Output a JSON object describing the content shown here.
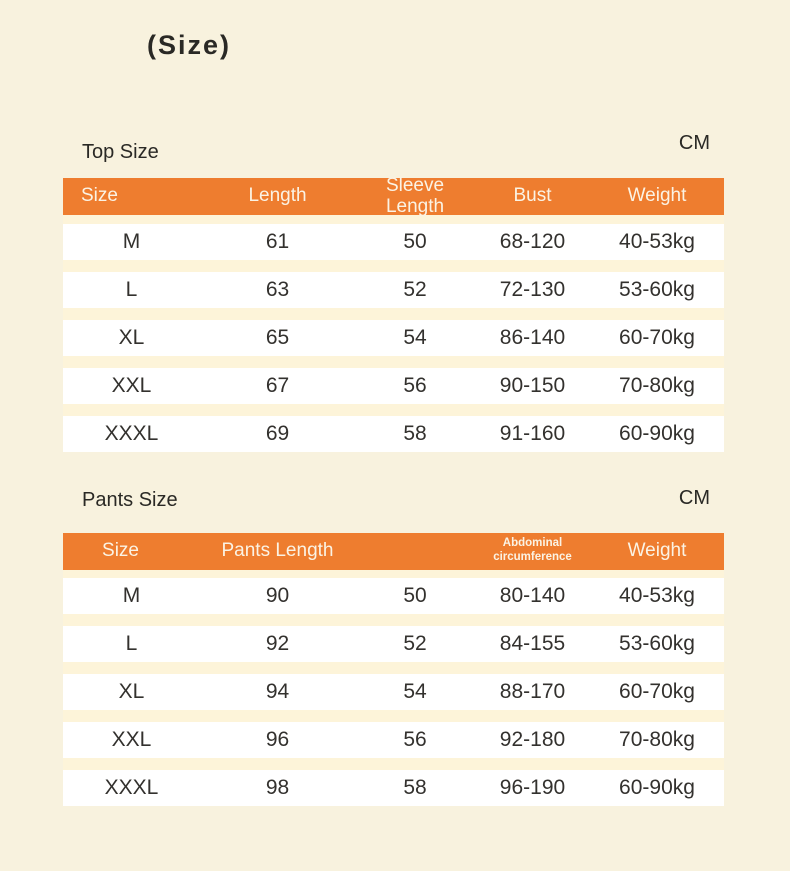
{
  "page": {
    "title": "(Size)",
    "background_color": "#f8f2de",
    "accent_color": "#ee7d2f"
  },
  "tables": [
    {
      "section_label": "Top Size",
      "unit": "CM",
      "headers": [
        "Size",
        "Length",
        "Sleeve Length",
        "Bust",
        "Weight"
      ],
      "rows": [
        [
          "M",
          "61",
          "50",
          "68-120",
          "40-53kg"
        ],
        [
          "L",
          "63",
          "52",
          "72-130",
          "53-60kg"
        ],
        [
          "XL",
          "65",
          "54",
          "86-140",
          "60-70kg"
        ],
        [
          "XXL",
          "67",
          "56",
          "90-150",
          "70-80kg"
        ],
        [
          "XXXL",
          "69",
          "58",
          "91-160",
          "60-90kg"
        ]
      ]
    },
    {
      "section_label": "Pants Size",
      "unit": "CM",
      "headers": [
        "Size",
        "Pants Length",
        "",
        "Abdominal circumference",
        "Weight"
      ],
      "rows": [
        [
          "M",
          "90",
          "50",
          "80-140",
          "40-53kg"
        ],
        [
          "L",
          "92",
          "52",
          "84-155",
          "53-60kg"
        ],
        [
          "XL",
          "94",
          "54",
          "88-170",
          "60-70kg"
        ],
        [
          "XXL",
          "96",
          "56",
          "92-180",
          "70-80kg"
        ],
        [
          "XXXL",
          "98",
          "58",
          "96-190",
          "60-90kg"
        ]
      ]
    }
  ]
}
